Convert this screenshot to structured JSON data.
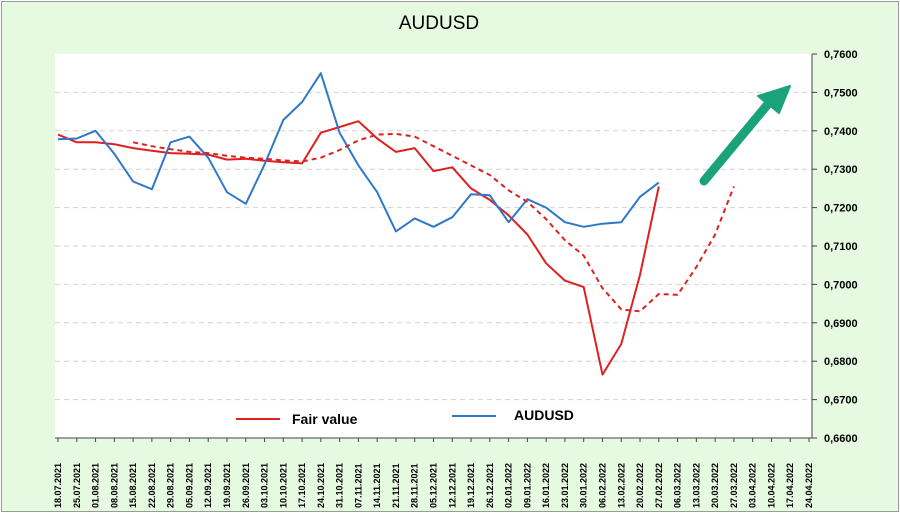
{
  "chart_data": {
    "type": "line",
    "title": "AUDUSD",
    "xlabel": "",
    "ylabel": "",
    "ylim": [
      0.66,
      0.76
    ],
    "yticks": [
      "0,6600",
      "0,6700",
      "0,6800",
      "0,6900",
      "0,7000",
      "0,7100",
      "0,7200",
      "0,7300",
      "0,7400",
      "0,7500",
      "0,7600"
    ],
    "y_axis_side": "right",
    "grid": "horizontal dashed",
    "legend": "bottom",
    "categories": [
      "18.07.2021",
      "25.07.2021",
      "01.08.2021",
      "08.08.2021",
      "15.08.2021",
      "22.08.2021",
      "29.08.2021",
      "05.09.2021",
      "12.09.2021",
      "19.09.2021",
      "26.09.2021",
      "03.10.2021",
      "10.10.2021",
      "17.10.2021",
      "24.10.2021",
      "31.10.2021",
      "07.11.2021",
      "14.11.2021",
      "21.11.2021",
      "28.11.2021",
      "05.12.2021",
      "12.12.2021",
      "19.12.2021",
      "26.12.2021",
      "02.01.2022",
      "09.01.2022",
      "16.01.2022",
      "23.01.2022",
      "30.01.2022",
      "06.02.2022",
      "13.02.2022",
      "20.02.2022",
      "27.02.2022",
      "06.03.2022",
      "13.03.2022",
      "20.03.2022",
      "27.03.2022",
      "03.04.2022",
      "10.04.2022",
      "17.04.2022",
      "24.04.2022"
    ],
    "series": [
      {
        "name": "Fair value",
        "color": "#e02020",
        "style": "solid",
        "values": [
          0.739,
          0.737,
          0.737,
          0.7365,
          0.7355,
          0.7348,
          0.7342,
          0.734,
          0.7338,
          0.7325,
          0.7327,
          0.7322,
          0.7318,
          0.7315,
          0.7395,
          0.741,
          0.7425,
          0.738,
          0.7345,
          0.7355,
          0.7295,
          0.7305,
          0.725,
          0.722,
          0.718,
          0.713,
          0.7055,
          0.701,
          0.6993,
          0.6765,
          0.6845,
          0.7025,
          0.7255,
          null,
          null,
          null,
          null,
          null,
          null,
          null,
          null
        ]
      },
      {
        "name": "AUDUSD",
        "color": "#2e78c8",
        "style": "solid",
        "values": [
          0.7378,
          0.738,
          0.74,
          0.734,
          0.7268,
          0.7248,
          0.737,
          0.7385,
          0.733,
          0.724,
          0.721,
          0.7312,
          0.7428,
          0.7475,
          0.755,
          0.7395,
          0.731,
          0.724,
          0.7138,
          0.7172,
          0.715,
          0.7175,
          0.7235,
          0.7232,
          0.7162,
          0.7222,
          0.72,
          0.7162,
          0.715,
          0.7158,
          0.7162,
          0.7228,
          0.7265,
          null,
          null,
          null,
          null,
          null,
          null,
          null,
          null
        ]
      },
      {
        "name": "",
        "color": "#e02020",
        "style": "dashed",
        "values": [
          null,
          null,
          null,
          null,
          0.737,
          0.736,
          0.7352,
          0.7345,
          0.7342,
          0.7335,
          0.733,
          0.7327,
          0.7323,
          0.732,
          0.733,
          0.735,
          0.7375,
          0.739,
          0.7392,
          0.7385,
          0.736,
          0.7335,
          0.731,
          0.7285,
          0.7245,
          0.7215,
          0.717,
          0.7115,
          0.7075,
          0.699,
          0.6935,
          0.693,
          0.6975,
          0.6973,
          0.7045,
          0.713,
          0.7255,
          null,
          null,
          null,
          null
        ]
      }
    ],
    "annotations": [
      {
        "type": "arrow",
        "direction": "up-right",
        "color": "#1aa37a"
      }
    ]
  },
  "legend": {
    "fair_value": "Fair value",
    "audusd": "AUDUSD"
  }
}
